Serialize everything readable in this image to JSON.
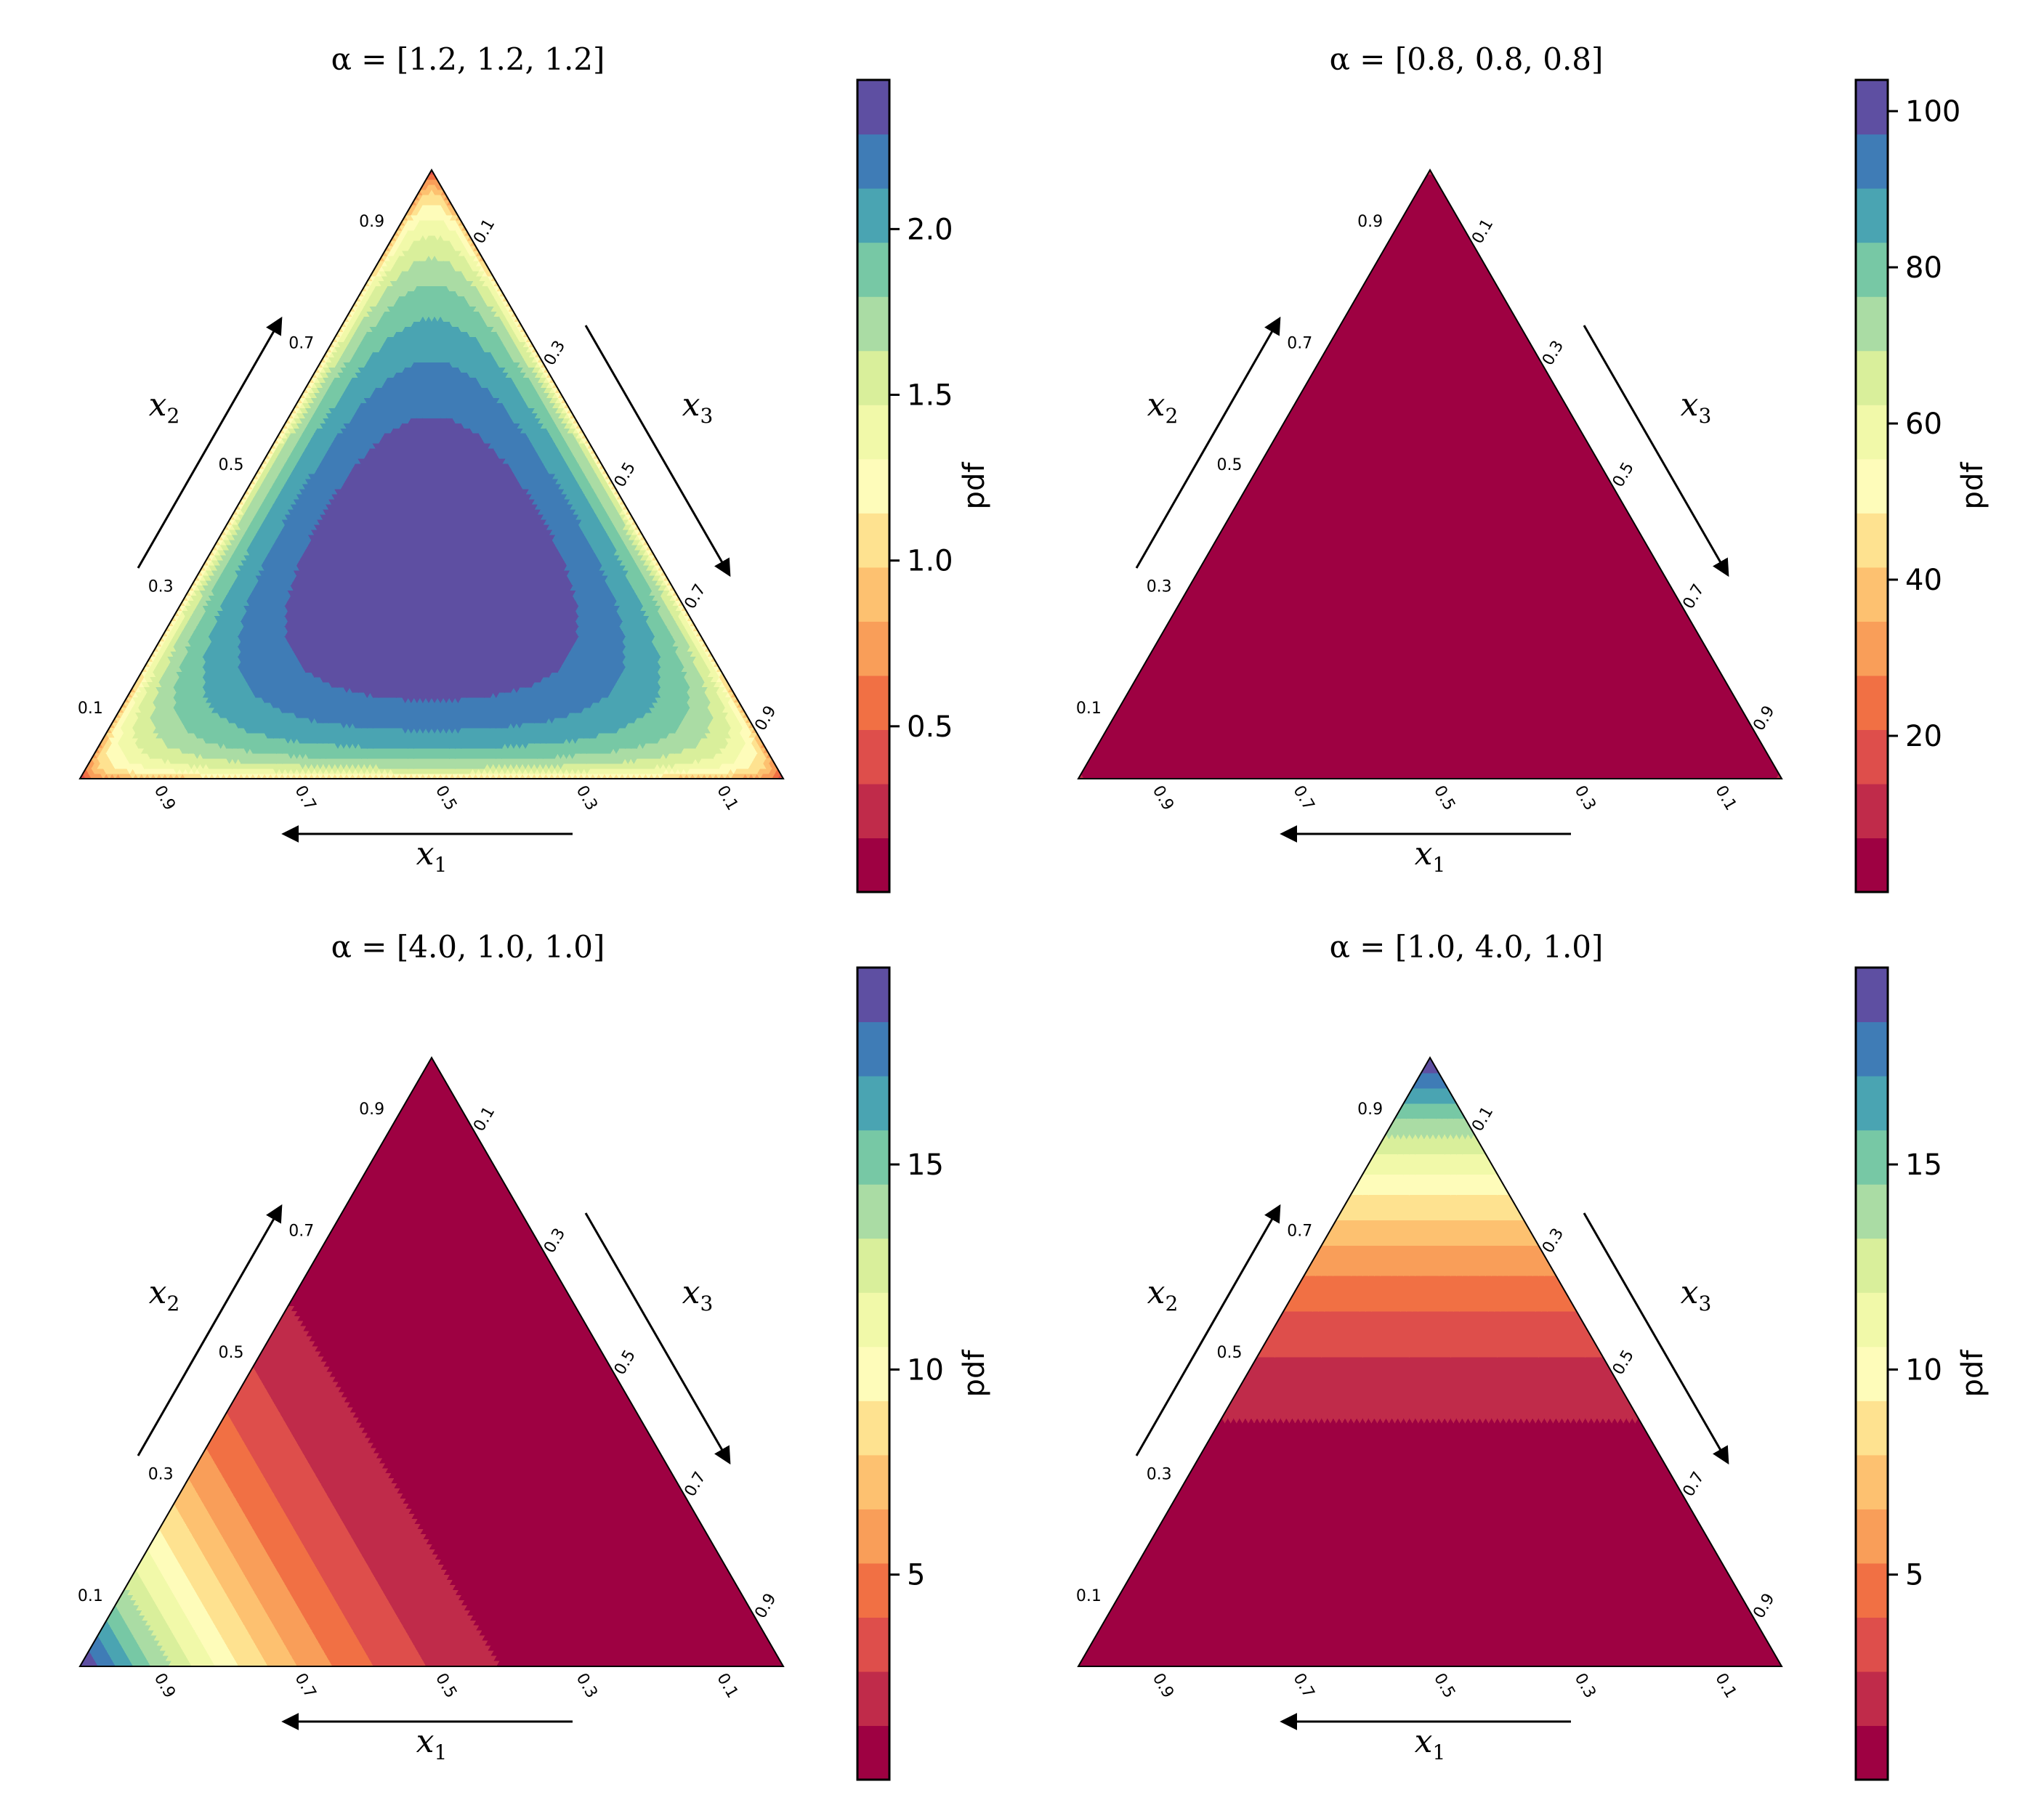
{
  "figure": {
    "colormap": [
      "#9e0142",
      "#c02b4a",
      "#de4e4b",
      "#f17044",
      "#f99e59",
      "#fdc170",
      "#fee290",
      "#fefcba",
      "#f1f9a9",
      "#d9ef9b",
      "#aadca4",
      "#77c8a5",
      "#4aa4b2",
      "#3f7cb6",
      "#5e4fa2"
    ]
  },
  "chart_data": [
    {
      "type": "ternary-contour",
      "title": "α = [1.2, 1.2, 1.2]",
      "alpha": [
        1.2,
        1.2,
        1.2
      ],
      "axes": {
        "x1": "x1",
        "x2": "x2",
        "x3": "x3"
      },
      "ticks": [
        "0.1",
        "0.3",
        "0.5",
        "0.7",
        "0.9"
      ],
      "colorbar": {
        "label": "pdf",
        "min": 0,
        "max": 2.45,
        "ticks": [
          0.5,
          1.0,
          1.5,
          2.0
        ],
        "tick_labels": [
          "0.5",
          "1.0",
          "1.5",
          "2.0"
        ]
      }
    },
    {
      "type": "ternary-contour",
      "title": "α = [0.8, 0.8, 0.8]",
      "alpha": [
        0.8,
        0.8,
        0.8
      ],
      "axes": {
        "x1": "x1",
        "x2": "x2",
        "x3": "x3"
      },
      "ticks": [
        "0.1",
        "0.3",
        "0.5",
        "0.7",
        "0.9"
      ],
      "colorbar": {
        "label": "pdf",
        "min": 0,
        "max": 104,
        "ticks": [
          20,
          40,
          60,
          80,
          100
        ],
        "tick_labels": [
          "20",
          "40",
          "60",
          "80",
          "100"
        ]
      }
    },
    {
      "type": "ternary-contour",
      "title": "α = [4.0, 1.0, 1.0]",
      "alpha": [
        4.0,
        1.0,
        1.0
      ],
      "axes": {
        "x1": "x1",
        "x2": "x2",
        "x3": "x3"
      },
      "ticks": [
        "0.1",
        "0.3",
        "0.5",
        "0.7",
        "0.9"
      ],
      "colorbar": {
        "label": "pdf",
        "min": 0,
        "max": 19.8,
        "ticks": [
          5,
          10,
          15
        ],
        "tick_labels": [
          "5",
          "10",
          "15"
        ]
      }
    },
    {
      "type": "ternary-contour",
      "title": "α = [1.0, 4.0, 1.0]",
      "alpha": [
        1.0,
        4.0,
        1.0
      ],
      "axes": {
        "x1": "x1",
        "x2": "x2",
        "x3": "x3"
      },
      "ticks": [
        "0.1",
        "0.3",
        "0.5",
        "0.7",
        "0.9"
      ],
      "colorbar": {
        "label": "pdf",
        "min": 0,
        "max": 19.8,
        "ticks": [
          5,
          10,
          15
        ],
        "tick_labels": [
          "5",
          "10",
          "15"
        ]
      }
    }
  ]
}
